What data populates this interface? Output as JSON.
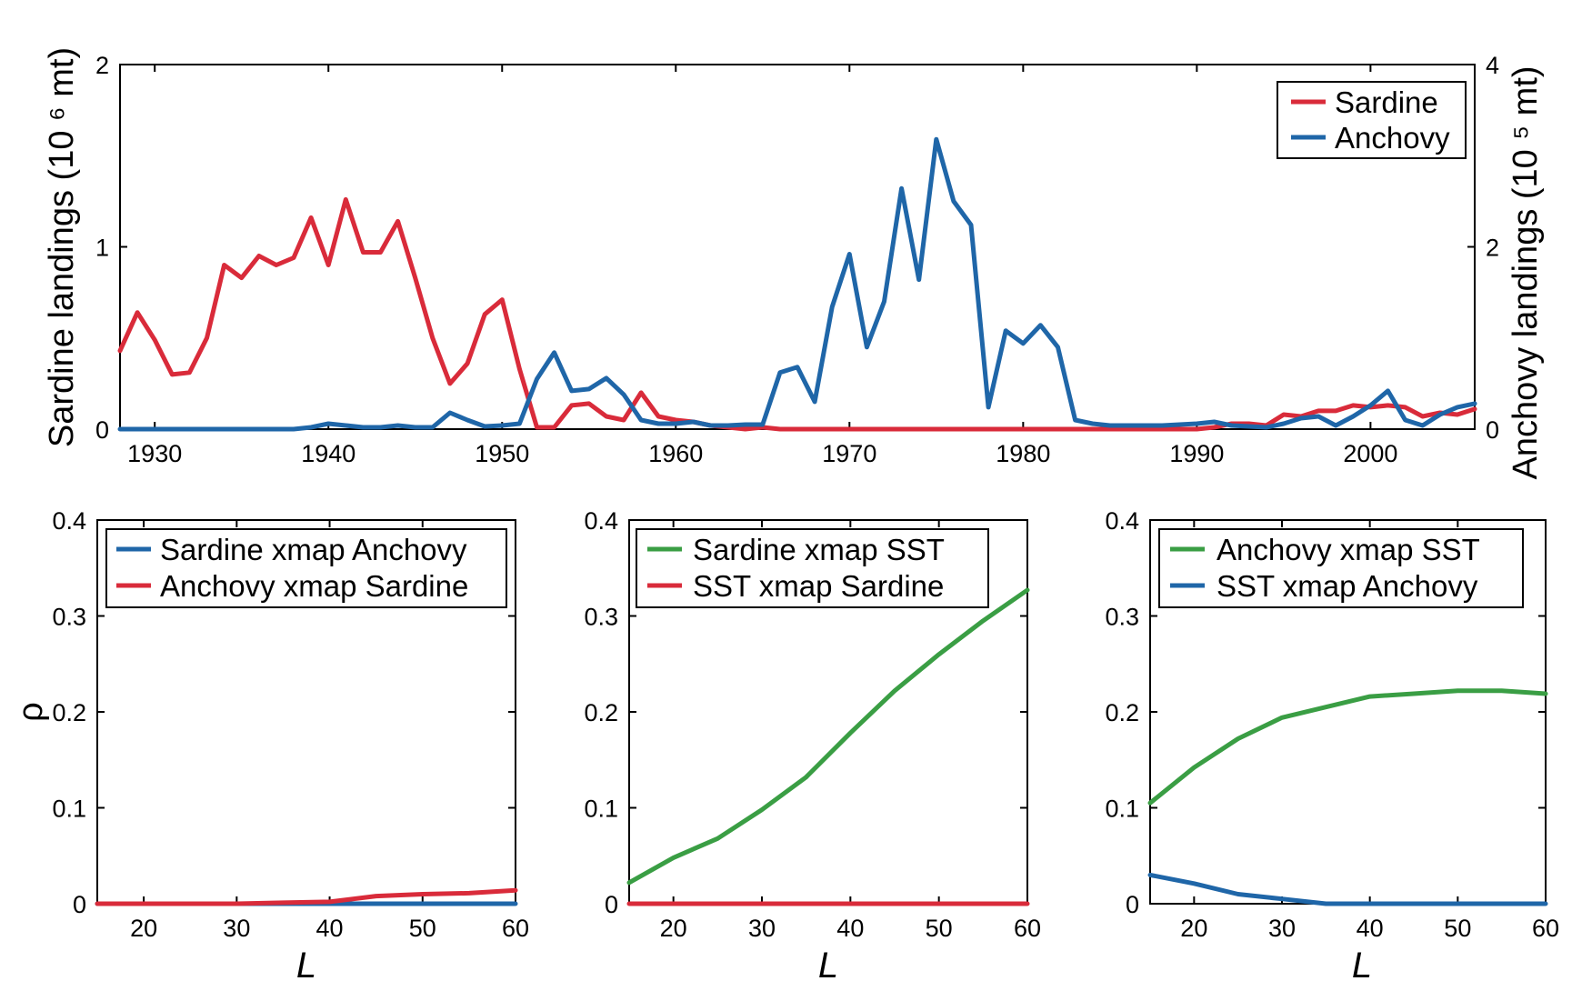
{
  "chart_data": [
    {
      "id": "top",
      "type": "line",
      "xlim": [
        1928,
        2006
      ],
      "x_ticks": [
        1930,
        1940,
        1950,
        1960,
        1970,
        1980,
        1990,
        2000
      ],
      "y_left": {
        "label": "Sardine landings (10 ⁶ mt)",
        "lim": [
          0,
          2
        ],
        "ticks": [
          0,
          1,
          2
        ]
      },
      "y_right": {
        "label": "Anchovy landings (10 ⁵ mt)",
        "lim": [
          0,
          4
        ],
        "ticks": [
          0,
          2,
          4
        ]
      },
      "legend": {
        "placement": "top-right",
        "entries": [
          "Sardine",
          "Anchovy"
        ]
      },
      "series": [
        {
          "name": "Sardine",
          "axis": "left",
          "color": "#d92b3a",
          "x": [
            1928,
            1929,
            1930,
            1931,
            1932,
            1933,
            1934,
            1935,
            1936,
            1937,
            1938,
            1939,
            1940,
            1941,
            1942,
            1943,
            1944,
            1945,
            1946,
            1947,
            1948,
            1949,
            1950,
            1951,
            1952,
            1953,
            1954,
            1955,
            1956,
            1957,
            1958,
            1959,
            1960,
            1961,
            1962,
            1963,
            1964,
            1965,
            1966,
            1970,
            1975,
            1980,
            1985,
            1990,
            1991,
            1992,
            1993,
            1994,
            1995,
            1996,
            1997,
            1998,
            1999,
            2000,
            2001,
            2002,
            2003,
            2004,
            2005,
            2006
          ],
          "values": [
            0.43,
            0.64,
            0.49,
            0.3,
            0.31,
            0.5,
            0.9,
            0.83,
            0.95,
            0.9,
            0.94,
            1.16,
            0.9,
            1.26,
            0.97,
            0.97,
            1.14,
            0.83,
            0.5,
            0.25,
            0.36,
            0.63,
            0.71,
            0.33,
            0.01,
            0.01,
            0.13,
            0.14,
            0.07,
            0.05,
            0.2,
            0.07,
            0.05,
            0.04,
            0.02,
            0.01,
            0.0,
            0.01,
            0.0,
            0.0,
            0.0,
            0.0,
            0.0,
            0.0,
            0.01,
            0.03,
            0.03,
            0.02,
            0.08,
            0.07,
            0.1,
            0.1,
            0.13,
            0.12,
            0.13,
            0.12,
            0.07,
            0.09,
            0.08,
            0.11
          ]
        },
        {
          "name": "Anchovy",
          "axis": "right",
          "color": "#1f66a8",
          "x": [
            1928,
            1930,
            1935,
            1938,
            1939,
            1940,
            1941,
            1942,
            1943,
            1944,
            1945,
            1946,
            1947,
            1948,
            1949,
            1950,
            1951,
            1952,
            1953,
            1954,
            1955,
            1956,
            1957,
            1958,
            1959,
            1960,
            1961,
            1962,
            1963,
            1964,
            1965,
            1966,
            1967,
            1968,
            1969,
            1970,
            1971,
            1972,
            1973,
            1974,
            1975,
            1976,
            1977,
            1978,
            1979,
            1980,
            1981,
            1982,
            1983,
            1984,
            1985,
            1988,
            1990,
            1991,
            1992,
            1993,
            1994,
            1995,
            1996,
            1997,
            1998,
            1999,
            2000,
            2001,
            2002,
            2003,
            2004,
            2005,
            2006
          ],
          "values": [
            0,
            0,
            0,
            0,
            0.02,
            0.06,
            0.04,
            0.02,
            0.02,
            0.04,
            0.02,
            0.02,
            0.18,
            0.1,
            0.03,
            0.04,
            0.06,
            0.55,
            0.84,
            0.42,
            0.44,
            0.56,
            0.38,
            0.1,
            0.06,
            0.06,
            0.08,
            0.04,
            0.04,
            0.05,
            0.05,
            0.62,
            0.68,
            0.3,
            1.34,
            1.92,
            0.9,
            1.4,
            2.64,
            1.64,
            3.18,
            2.5,
            2.24,
            0.24,
            1.08,
            0.94,
            1.14,
            0.9,
            0.1,
            0.06,
            0.04,
            0.04,
            0.06,
            0.08,
            0.04,
            0.03,
            0.02,
            0.06,
            0.12,
            0.14,
            0.04,
            0.14,
            0.26,
            0.42,
            0.1,
            0.04,
            0.16,
            0.24,
            0.28
          ]
        }
      ]
    },
    {
      "id": "bottom-left",
      "type": "line",
      "xlim": [
        15,
        60
      ],
      "x_ticks": [
        20,
        30,
        40,
        50,
        60
      ],
      "xlabel": "L",
      "ylabel": "ρ",
      "ylim": [
        0,
        0.4
      ],
      "y_ticks": [
        0,
        0.1,
        0.2,
        0.3,
        0.4
      ],
      "y_tick_labels": [
        "0",
        "0.1",
        "0.2",
        "0.3",
        "0.4"
      ],
      "legend": {
        "placement": "top",
        "entries": [
          "Sardine xmap Anchovy",
          "Anchovy xmap Sardine"
        ]
      },
      "series": [
        {
          "name": "Sardine xmap Anchovy",
          "color": "#1f66a8",
          "x": [
            15,
            20,
            25,
            30,
            35,
            40,
            45,
            50,
            55,
            60
          ],
          "values": [
            0,
            0,
            0,
            0,
            0,
            0,
            0,
            0,
            0,
            0
          ]
        },
        {
          "name": "Anchovy xmap Sardine",
          "color": "#d92b3a",
          "x": [
            15,
            20,
            25,
            30,
            35,
            40,
            45,
            50,
            55,
            60
          ],
          "values": [
            0,
            0,
            0,
            0,
            0.001,
            0.002,
            0.008,
            0.01,
            0.011,
            0.014
          ]
        }
      ]
    },
    {
      "id": "bottom-middle",
      "type": "line",
      "xlim": [
        15,
        60
      ],
      "x_ticks": [
        20,
        30,
        40,
        50,
        60
      ],
      "xlabel": "L",
      "ylim": [
        0,
        0.4
      ],
      "y_ticks": [
        0,
        0.1,
        0.2,
        0.3,
        0.4
      ],
      "y_tick_labels": [
        "0",
        "0.1",
        "0.2",
        "0.3",
        "0.4"
      ],
      "legend": {
        "placement": "top",
        "entries": [
          "Sardine xmap SST",
          "SST xmap Sardine"
        ]
      },
      "series": [
        {
          "name": "Sardine xmap SST",
          "color": "#3a9e44",
          "x": [
            15,
            20,
            25,
            30,
            35,
            40,
            45,
            50,
            55,
            60
          ],
          "values": [
            0.022,
            0.048,
            0.068,
            0.098,
            0.132,
            0.178,
            0.222,
            0.26,
            0.295,
            0.327
          ]
        },
        {
          "name": "SST xmap Sardine",
          "color": "#d92b3a",
          "x": [
            15,
            20,
            25,
            30,
            35,
            40,
            45,
            50,
            55,
            60
          ],
          "values": [
            0,
            0,
            0,
            0,
            0,
            0,
            0,
            0,
            0,
            0
          ]
        }
      ]
    },
    {
      "id": "bottom-right",
      "type": "line",
      "xlim": [
        15,
        60
      ],
      "x_ticks": [
        20,
        30,
        40,
        50,
        60
      ],
      "xlabel": "L",
      "ylim": [
        0,
        0.4
      ],
      "y_ticks": [
        0,
        0.1,
        0.2,
        0.3,
        0.4
      ],
      "y_tick_labels": [
        "0",
        "0.1",
        "0.2",
        "0.3",
        "0.4"
      ],
      "legend": {
        "placement": "top",
        "entries": [
          "Anchovy xmap SST",
          "SST xmap Anchovy"
        ]
      },
      "series": [
        {
          "name": "Anchovy xmap SST",
          "color": "#3a9e44",
          "x": [
            15,
            20,
            25,
            30,
            35,
            40,
            45,
            50,
            55,
            60
          ],
          "values": [
            0.105,
            0.142,
            0.172,
            0.194,
            0.205,
            0.216,
            0.219,
            0.222,
            0.222,
            0.219
          ]
        },
        {
          "name": "SST xmap Anchovy",
          "color": "#1f66a8",
          "x": [
            15,
            20,
            25,
            30,
            35,
            40,
            45,
            50,
            55,
            60
          ],
          "values": [
            0.03,
            0.021,
            0.01,
            0.005,
            0,
            0,
            0,
            0,
            0,
            0
          ]
        }
      ]
    }
  ]
}
